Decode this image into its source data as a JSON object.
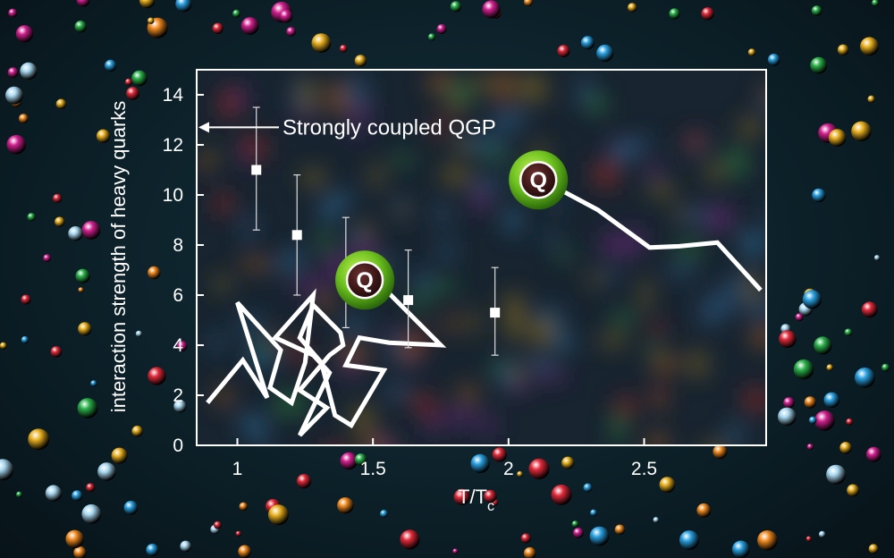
{
  "chart_data": {
    "type": "scatter",
    "xlabel": "T/T",
    "xlabel_subscript": "c",
    "ylabel": "interaction strength of heavy quarks",
    "xlim": [
      0.85,
      2.95
    ],
    "ylim": [
      0,
      15
    ],
    "x_ticks": [
      1,
      1.5,
      2,
      2.5
    ],
    "x_tick_labels": [
      "1",
      "1.5",
      "2",
      "2.5"
    ],
    "y_ticks": [
      0,
      2,
      4,
      6,
      8,
      10,
      12,
      14
    ],
    "y_tick_labels": [
      "0",
      "2",
      "4",
      "6",
      "8",
      "10",
      "12",
      "14"
    ],
    "grid": false,
    "series": [
      {
        "points": [
          {
            "x": 1.07,
            "y": 11.0,
            "ylow": 8.6,
            "yhigh": 13.5
          },
          {
            "x": 1.22,
            "y": 8.4,
            "ylow": 6.0,
            "yhigh": 10.8
          },
          {
            "x": 1.4,
            "y": 6.9,
            "ylow": 4.7,
            "yhigh": 9.1
          },
          {
            "x": 1.63,
            "y": 5.8,
            "ylow": 3.9,
            "yhigh": 7.8
          },
          {
            "x": 1.95,
            "y": 5.3,
            "ylow": 3.6,
            "yhigh": 7.1
          }
        ]
      }
    ],
    "annotations": [
      {
        "text": "Strongly coupled QGP",
        "y": 12.7
      },
      {
        "text": "Q",
        "x": 1.47,
        "y": 6.6
      },
      {
        "text": "Q",
        "x": 2.11,
        "y": 10.6
      }
    ],
    "trajectory_curly": [
      [
        0.89,
        1.7
      ],
      [
        1.02,
        3.4
      ],
      [
        1.11,
        1.9
      ],
      [
        1.0,
        5.7
      ],
      [
        1.16,
        3.8
      ],
      [
        1.12,
        2.3
      ],
      [
        1.2,
        1.7
      ],
      [
        1.25,
        3.3
      ],
      [
        1.28,
        6.0
      ],
      [
        1.14,
        4.3
      ],
      [
        1.28,
        3.6
      ],
      [
        1.34,
        2.9
      ],
      [
        1.23,
        0.4
      ],
      [
        1.33,
        1.5
      ],
      [
        1.23,
        2.2
      ],
      [
        1.34,
        3.6
      ],
      [
        1.39,
        4.0
      ],
      [
        1.38,
        4.5
      ],
      [
        1.28,
        5.6
      ],
      [
        1.23,
        4.3
      ],
      [
        1.31,
        3.3
      ],
      [
        1.36,
        1.2
      ],
      [
        1.42,
        0.8
      ],
      [
        1.54,
        3.0
      ],
      [
        1.4,
        3.2
      ],
      [
        1.45,
        4.3
      ],
      [
        1.56,
        4.1
      ],
      [
        1.75,
        4.0
      ],
      [
        1.52,
        6.5
      ]
    ],
    "trajectory_smooth": [
      [
        2.14,
        10.5
      ],
      [
        2.33,
        9.4
      ],
      [
        2.52,
        7.9
      ],
      [
        2.63,
        7.95
      ],
      [
        2.77,
        8.1
      ],
      [
        2.93,
        6.2
      ]
    ],
    "colors": {
      "text": "#ffffff",
      "frame": "#ffffff",
      "markers": "#ffffff",
      "badge_green": "#6cc11e",
      "badge_core": "#3a1a1a"
    }
  }
}
